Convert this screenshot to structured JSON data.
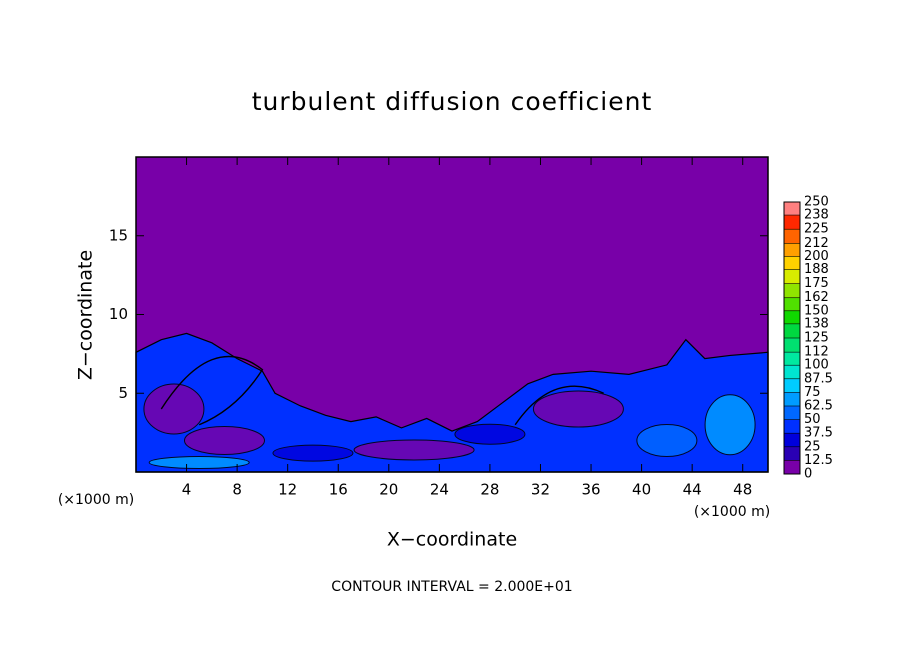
{
  "chart_data": {
    "type": "contour",
    "title": "turbulent diffusion coefficient",
    "x_label": "X−coordinate",
    "y_label": "Z−coordinate",
    "x_unit": "(×1000 m)",
    "y_unit": "(×1000 m)",
    "annotation": "CONTOUR INTERVAL = 2.000E+01",
    "xlim": [
      0,
      50
    ],
    "ylim": [
      0,
      20
    ],
    "xticks": [
      4,
      8,
      12,
      16,
      20,
      24,
      28,
      32,
      36,
      40,
      44,
      48
    ],
    "yticks": [
      5,
      10,
      15
    ],
    "colorbar": {
      "levels": [
        0,
        12.5,
        25,
        37.5,
        50,
        62.5,
        75,
        87.5,
        100,
        112,
        125,
        138,
        150,
        162,
        175,
        188,
        200,
        212,
        225,
        238,
        250
      ],
      "colors": [
        "#7800a8",
        "#2a00b4",
        "#0000dc",
        "#0030ff",
        "#0068ff",
        "#009cff",
        "#00ccff",
        "#00e4d0",
        "#00e8a0",
        "#00e070",
        "#00d840",
        "#10d800",
        "#50e000",
        "#90e400",
        "#d8ec00",
        "#ffd200",
        "#ffa000",
        "#ff6400",
        "#ff2800",
        "#ff8080"
      ]
    }
  }
}
